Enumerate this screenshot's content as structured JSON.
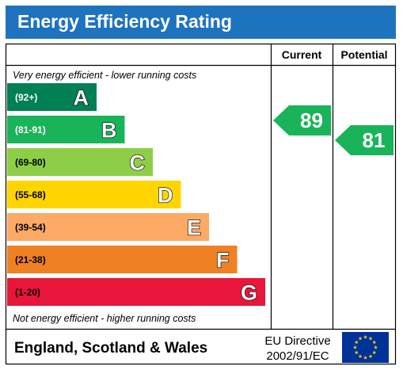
{
  "header": {
    "title": "Energy Efficiency Rating"
  },
  "columns": {
    "current": "Current",
    "potential": "Potential"
  },
  "top_note": "Very energy efficient - lower running costs",
  "bottom_note": "Not energy efficient - higher running costs",
  "footer": {
    "region": "England, Scotland & Wales",
    "directive_line1": "EU Directive",
    "directive_line2": "2002/91/EC"
  },
  "colors": {
    "header": "#1e73be",
    "eu_flag": "#003399",
    "eu_stars": "#ffcc00"
  },
  "chart_data": {
    "type": "bar",
    "bands": [
      {
        "letter": "A",
        "range": "(92+)",
        "color": "#008054"
      },
      {
        "letter": "B",
        "range": "(81-91)",
        "color": "#19b459"
      },
      {
        "letter": "C",
        "range": "(69-80)",
        "color": "#8dce46"
      },
      {
        "letter": "D",
        "range": "(55-68)",
        "color": "#ffd500"
      },
      {
        "letter": "E",
        "range": "(39-54)",
        "color": "#fcaa65"
      },
      {
        "letter": "F",
        "range": "(21-38)",
        "color": "#ef8023"
      },
      {
        "letter": "G",
        "range": "(1-20)",
        "color": "#e9153b"
      }
    ],
    "current": {
      "value": 89,
      "band": "B",
      "color": "#19b459"
    },
    "potential": {
      "value": 81,
      "band": "B",
      "color": "#19b459"
    }
  }
}
